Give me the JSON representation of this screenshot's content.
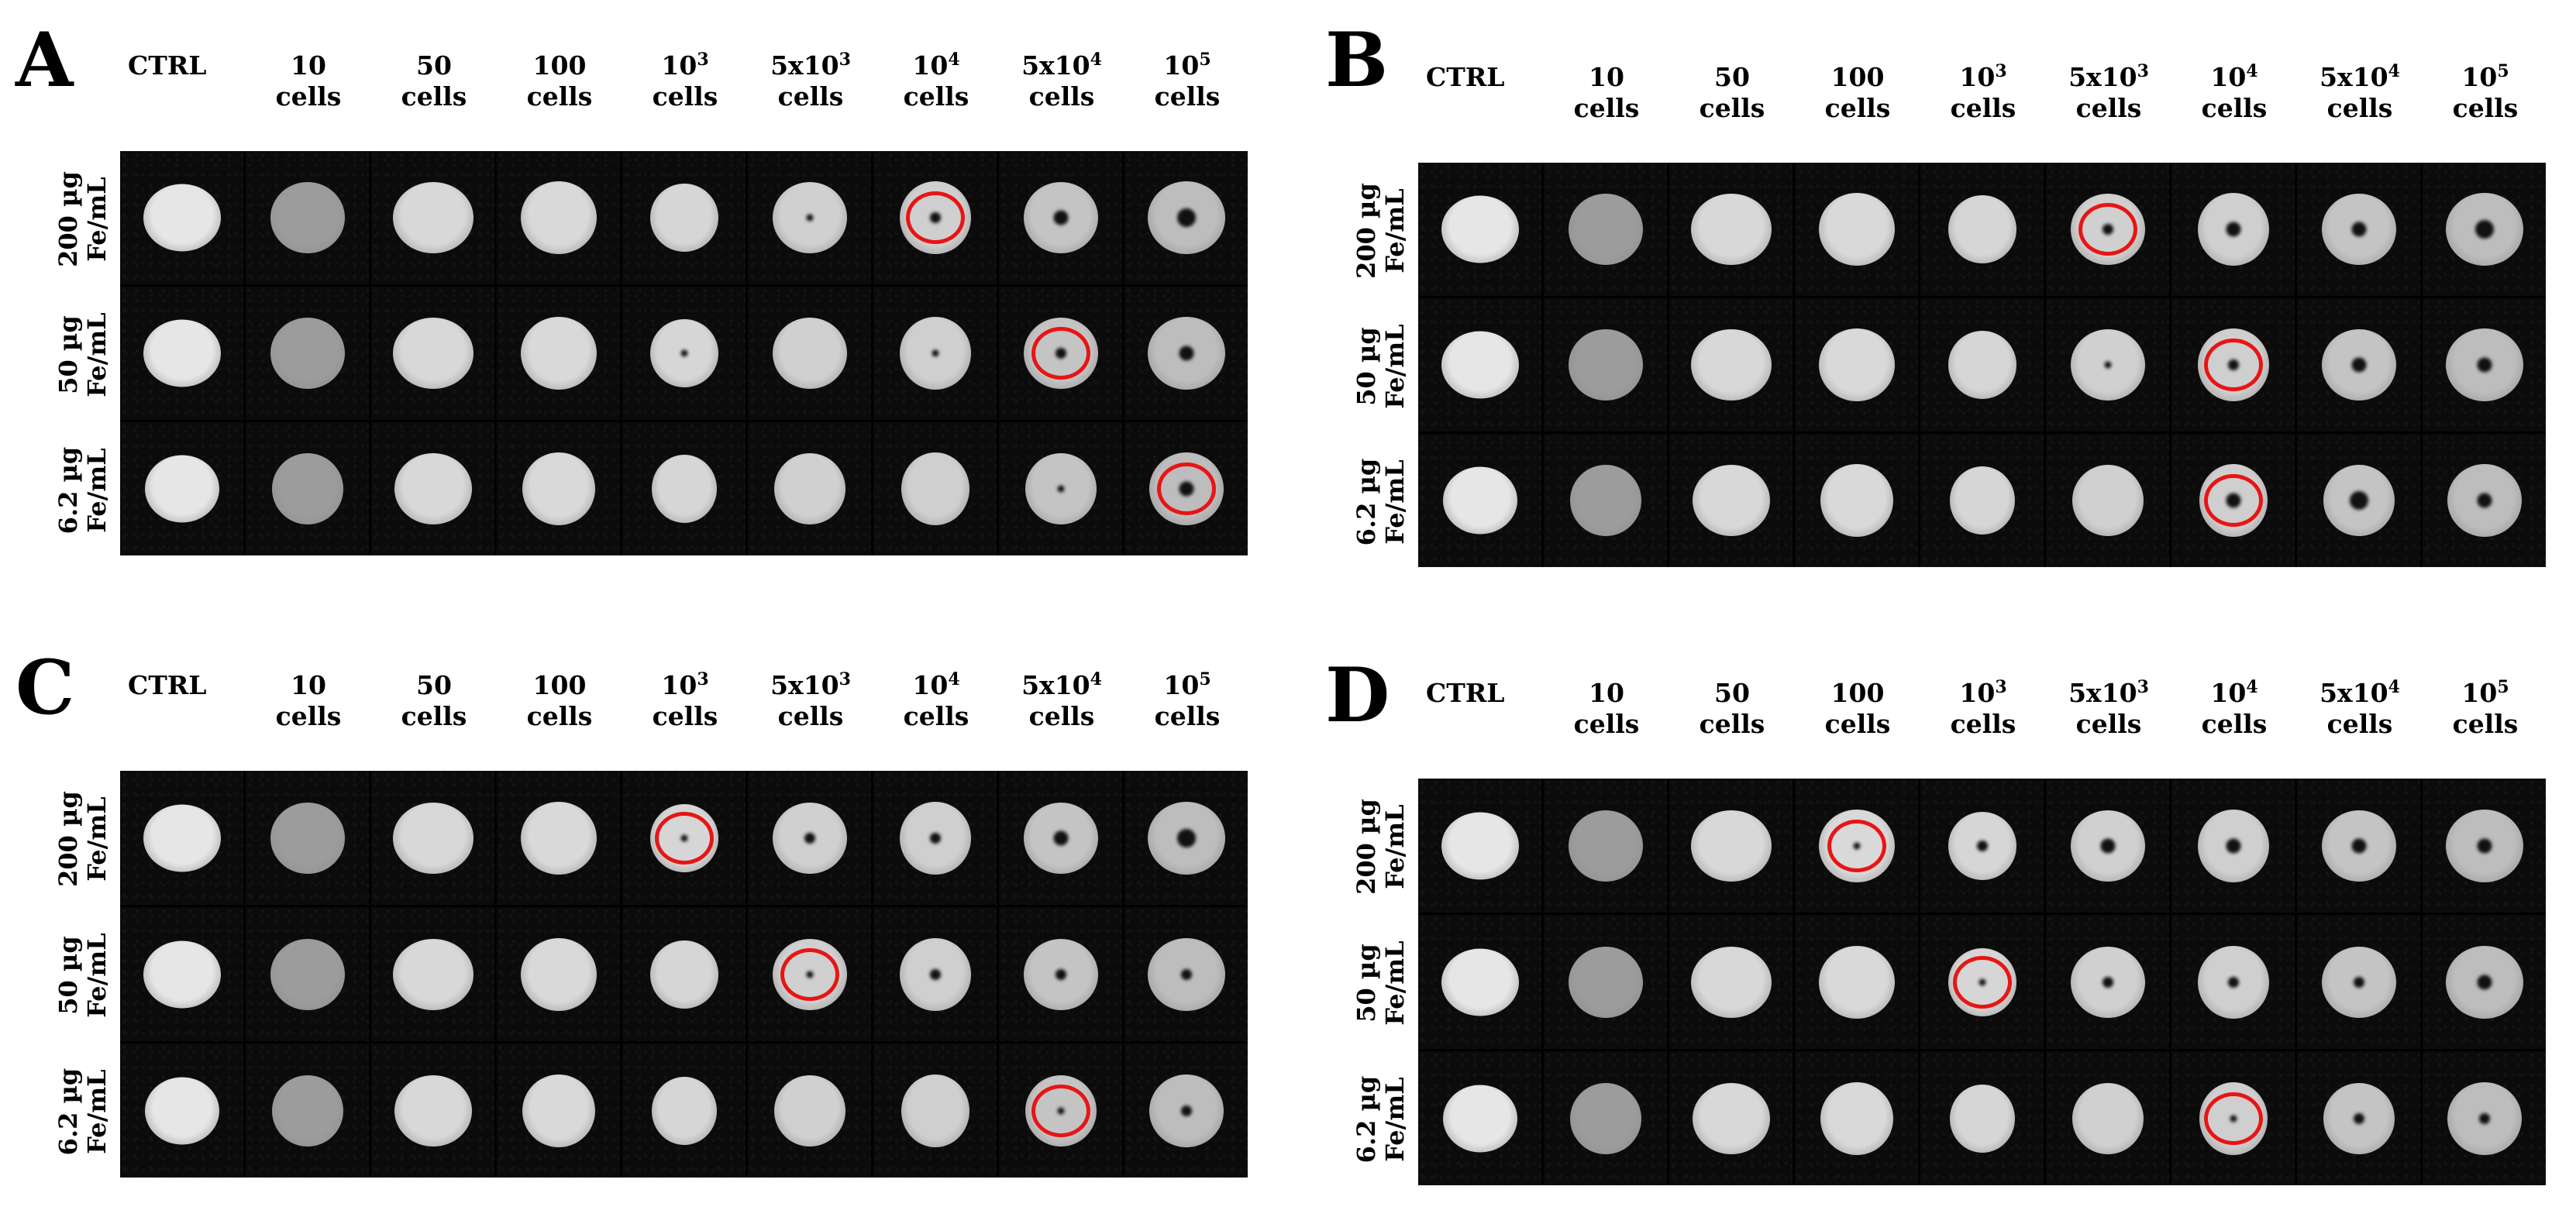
{
  "columns": [
    {
      "main": "CTRL",
      "second": ""
    },
    {
      "main": "10",
      "second": "cells"
    },
    {
      "main": "50",
      "second": "cells"
    },
    {
      "main": "100",
      "second": "cells"
    },
    {
      "main": "10",
      "sup": "3",
      "second": "cells"
    },
    {
      "main": "5x10",
      "sup": "3",
      "second": "cells"
    },
    {
      "main": "10",
      "sup": "4",
      "second": "cells"
    },
    {
      "main": "5x10",
      "sup": "4",
      "second": "cells"
    },
    {
      "main": "10",
      "sup": "5",
      "second": "cells"
    }
  ],
  "rows": [
    {
      "line1": "200 µg",
      "line2": "Fe/mL"
    },
    {
      "line1": "50 µg",
      "line2": "Fe/mL"
    },
    {
      "line1": "6.2 µg",
      "line2": "Fe/mL"
    }
  ],
  "panels": [
    {
      "letter": "A",
      "highlighted": [
        [
          0,
          6
        ],
        [
          1,
          7
        ],
        [
          2,
          8
        ]
      ],
      "spot_levels": [
        [
          0,
          0,
          0,
          0,
          0,
          1,
          2,
          3,
          4
        ],
        [
          0,
          0,
          0,
          0,
          1,
          0,
          1,
          2,
          3
        ],
        [
          0,
          0,
          0,
          0,
          0,
          0,
          0,
          1,
          3
        ]
      ]
    },
    {
      "letter": "B",
      "highlighted": [
        [
          0,
          5
        ],
        [
          1,
          6
        ],
        [
          2,
          6
        ]
      ],
      "spot_levels": [
        [
          0,
          0,
          0,
          0,
          0,
          2,
          3,
          3,
          4
        ],
        [
          0,
          0,
          0,
          0,
          0,
          1,
          2,
          3,
          3
        ],
        [
          0,
          0,
          0,
          0,
          0,
          0,
          3,
          4,
          3
        ]
      ]
    },
    {
      "letter": "C",
      "highlighted": [
        [
          0,
          4
        ],
        [
          1,
          5
        ],
        [
          2,
          7
        ]
      ],
      "spot_levels": [
        [
          0,
          0,
          0,
          0,
          1,
          2,
          2,
          3,
          4
        ],
        [
          0,
          0,
          0,
          0,
          0,
          1,
          2,
          2,
          2
        ],
        [
          0,
          0,
          0,
          0,
          0,
          0,
          0,
          1,
          2
        ]
      ]
    },
    {
      "letter": "D",
      "highlighted": [
        [
          0,
          3
        ],
        [
          1,
          4
        ],
        [
          2,
          6
        ]
      ],
      "spot_levels": [
        [
          0,
          0,
          0,
          1,
          2,
          3,
          3,
          3,
          3
        ],
        [
          0,
          0,
          0,
          0,
          1,
          2,
          2,
          2,
          3
        ],
        [
          0,
          0,
          0,
          0,
          0,
          0,
          1,
          2,
          2
        ]
      ]
    }
  ]
}
